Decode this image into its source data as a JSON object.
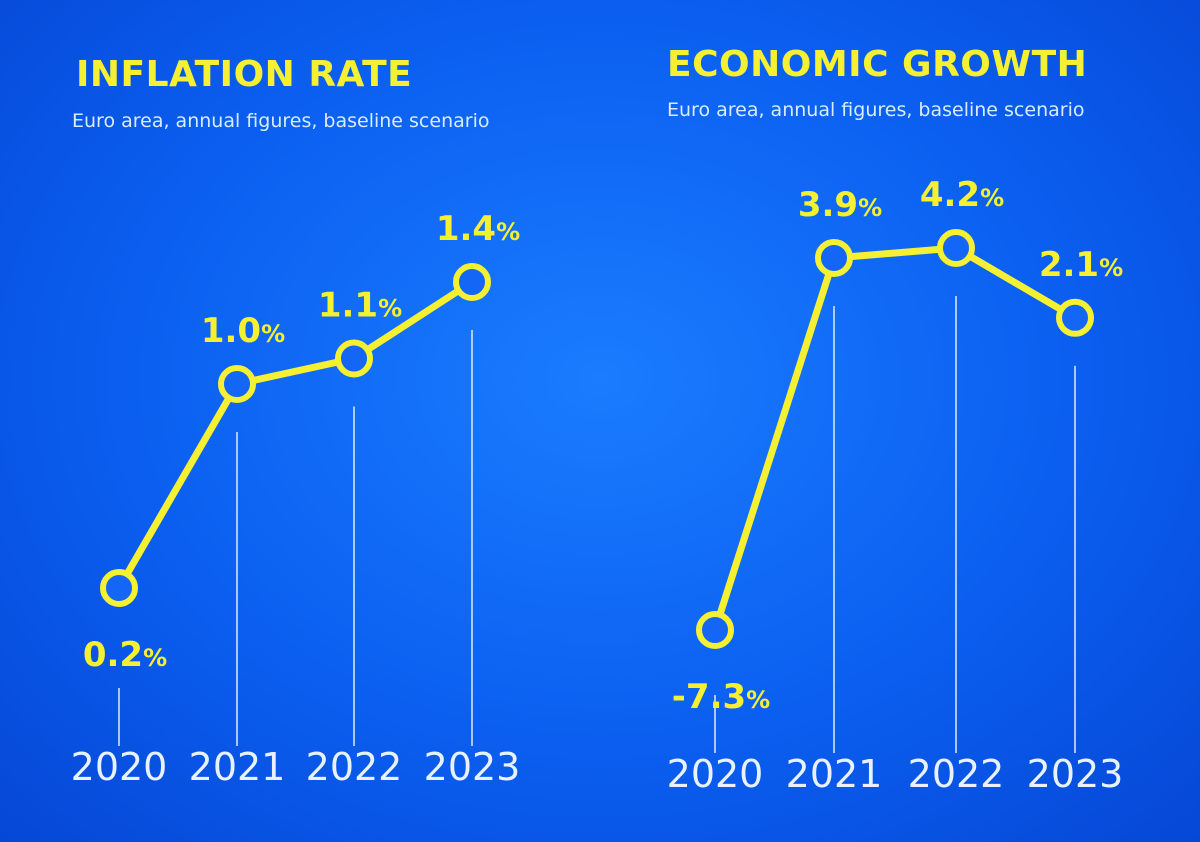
{
  "chart_data": [
    {
      "type": "line",
      "title": "INFLATION RATE",
      "subtitle": "Euro area, annual figures, baseline scenario",
      "categories": [
        "2020",
        "2021",
        "2022",
        "2023"
      ],
      "values": [
        0.2,
        1.0,
        1.1,
        1.4
      ],
      "value_labels": [
        "0.2",
        "1.0",
        "1.1",
        "1.4"
      ],
      "unit": "%",
      "ylim": [
        0.0,
        1.6
      ],
      "grid": false,
      "legend": "none"
    },
    {
      "type": "line",
      "title": "ECONOMIC GROWTH",
      "subtitle": "Euro area, annual figures, baseline scenario",
      "categories": [
        "2020",
        "2021",
        "2022",
        "2023"
      ],
      "values": [
        -7.3,
        3.9,
        4.2,
        2.1
      ],
      "value_labels": [
        "-7.3",
        "3.9",
        "4.2",
        "2.1"
      ],
      "unit": "%",
      "ylim": [
        -8.0,
        5.0
      ],
      "grid": false,
      "legend": "none"
    }
  ],
  "colors": {
    "accent": "#f5f032",
    "background": "#0b5ff0",
    "subtitle": "#d7ecff",
    "ticks": "#e8f2ff"
  }
}
